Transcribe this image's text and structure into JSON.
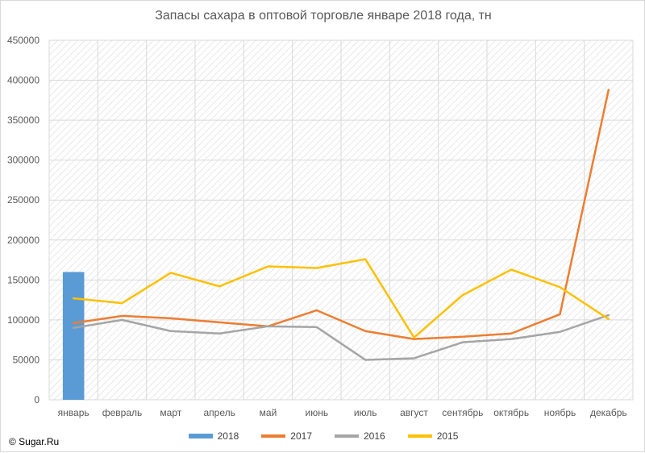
{
  "chart_data": {
    "type": "bar+line",
    "title": "Запасы сахара в оптовой торговле январе 2018 года, тн",
    "categories": [
      "январь",
      "февраль",
      "март",
      "апрель",
      "май",
      "июнь",
      "июль",
      "август",
      "сентябрь",
      "октябрь",
      "ноябрь",
      "декабрь"
    ],
    "yticks": [
      "0",
      "50000",
      "100000",
      "150000",
      "200000",
      "250000",
      "300000",
      "350000",
      "400000",
      "450000"
    ],
    "ylim": [
      0,
      450000
    ],
    "grid": true,
    "legend_position": "bottom",
    "series": [
      {
        "name": "2018",
        "type": "bar",
        "color": "#5B9BD5",
        "values": [
          160000,
          null,
          null,
          null,
          null,
          null,
          null,
          null,
          null,
          null,
          null,
          null
        ]
      },
      {
        "name": "2017",
        "type": "line",
        "color": "#ED7D31",
        "values": [
          96000,
          105000,
          102000,
          97000,
          92000,
          112000,
          86000,
          76000,
          79000,
          83000,
          107000,
          388000
        ]
      },
      {
        "name": "2016",
        "type": "line",
        "color": "#A5A5A5",
        "values": [
          90000,
          100000,
          86000,
          83000,
          92000,
          91000,
          50000,
          52000,
          72000,
          76000,
          85000,
          106000
        ]
      },
      {
        "name": "2015",
        "type": "line",
        "color": "#FFC000",
        "values": [
          127000,
          121000,
          159000,
          142000,
          167000,
          165000,
          176000,
          78000,
          131000,
          163000,
          141000,
          101000
        ]
      }
    ]
  },
  "copyright": "© Sugar.Ru"
}
